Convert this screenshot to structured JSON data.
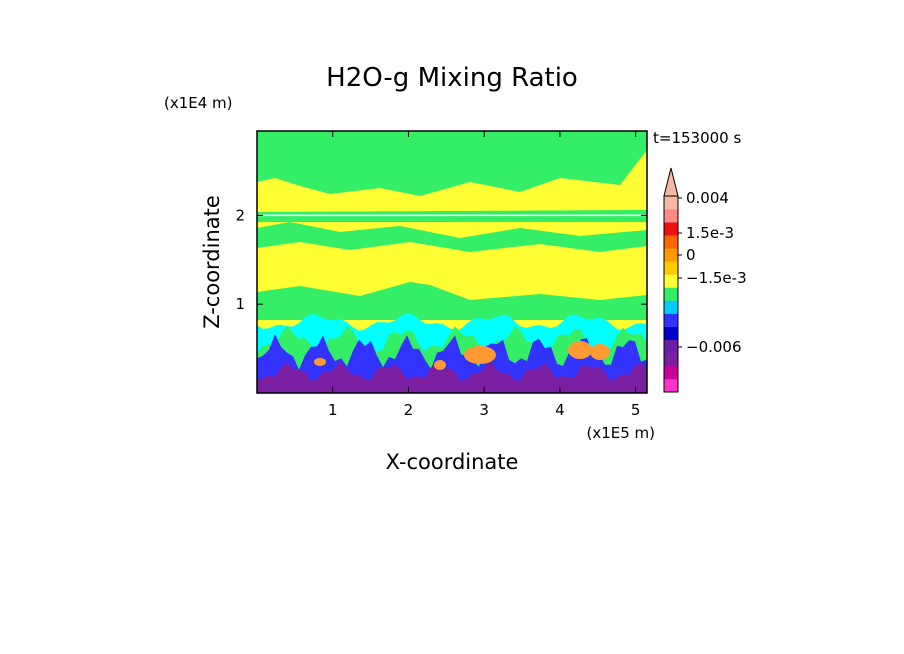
{
  "chart_data": {
    "type": "heatmap",
    "title": "H2O-g Mixing Ratio",
    "xlabel": "X-coordinate",
    "ylabel": "Z-coordinate",
    "x_unit": "(x1E5 m)",
    "y_unit": "(x1E4 m)",
    "time_label": "t=153000 s",
    "xlim": [
      0,
      5.15
    ],
    "ylim": [
      0,
      2.95
    ],
    "x_ticks": [
      1,
      2,
      3,
      4,
      5
    ],
    "x_tick_labels": [
      "1",
      "2",
      "3",
      "4",
      "5"
    ],
    "y_ticks": [
      1,
      2
    ],
    "y_tick_labels": [
      "1",
      "2"
    ],
    "colorbar": {
      "colors": [
        "#ff33cc",
        "#cc0099",
        "#7a1fa2",
        "#6b1fa8",
        "#0000cc",
        "#3333ff",
        "#00ccff",
        "#33ee66",
        "#ffff33",
        "#ffcc00",
        "#ff9900",
        "#ff6600",
        "#ee1111",
        "#ff8888",
        "#f5b8a0"
      ],
      "labels": [
        "0.004",
        "1.5e-3",
        "0",
        "−1.5e-3",
        "−0.006"
      ],
      "label_levels": [
        0.004,
        0.0015,
        0,
        -0.0015,
        -0.006
      ],
      "extend_top": true
    },
    "field_palette": {
      "upper": "#ffff33",
      "band": "#33ee66",
      "low1": "#00ffff",
      "low2": "#3333ff",
      "low3": "#7a1fa2",
      "warm": "#ff9933"
    }
  }
}
